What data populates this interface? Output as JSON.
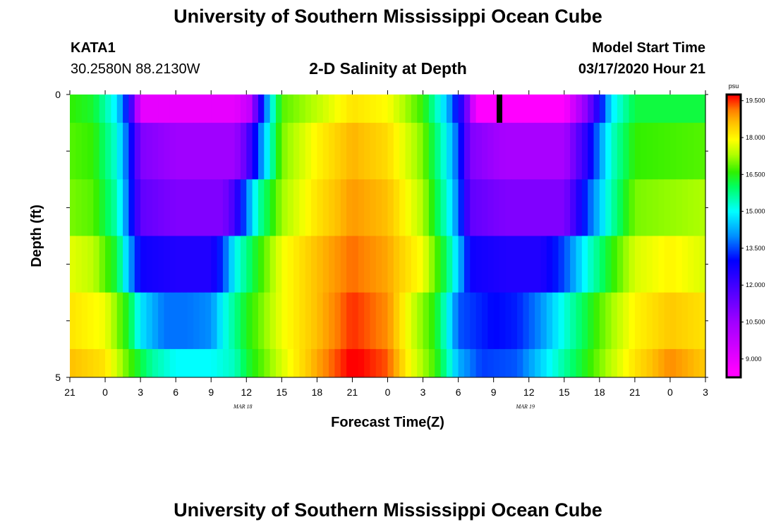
{
  "header": {
    "title": "University of Southern Mississippi Ocean Cube",
    "station": "KATA1",
    "coords": "30.2580N 88.2130W",
    "subtitle": "2-D Salinity at Depth",
    "model_start_label": "Model Start Time",
    "model_start_value": "03/17/2020 Hour 21"
  },
  "footer": {
    "title": "University of Southern Mississippi Ocean Cube"
  },
  "chart_data": {
    "type": "heatmap",
    "title": "2-D Salinity at Depth",
    "xlabel": "Forecast Time(Z)",
    "ylabel": "Depth (ft)",
    "x_ticks": [
      "21",
      "0",
      "3",
      "6",
      "9",
      "12",
      "15",
      "18",
      "21",
      "0",
      "3",
      "6",
      "9",
      "12",
      "15",
      "18",
      "21",
      "0",
      "3"
    ],
    "x_range_hours": [
      0,
      54
    ],
    "date_labels": [
      {
        "text": "MAR 18",
        "hour": 15
      },
      {
        "text": "MAR 19",
        "hour": 39
      }
    ],
    "y_ticks": [
      "0",
      "5"
    ],
    "y_range": [
      0,
      5
    ],
    "depth_rows": [
      0,
      1,
      2,
      3,
      4,
      5
    ],
    "current_time_hour": 36.5,
    "colorbar": {
      "unit": "psu",
      "min": 8.25,
      "max": 19.75,
      "tick_labels": [
        "19.500",
        "18.000",
        "16.500",
        "15.000",
        "13.500",
        "12.000",
        "10.500",
        "9.000"
      ],
      "tick_values": [
        19.5,
        18.0,
        16.5,
        15.0,
        13.5,
        12.0,
        10.5,
        9.0
      ]
    },
    "colormap": [
      {
        "v": 8.5,
        "c": "#ff00ff"
      },
      {
        "v": 10.5,
        "c": "#a000ff"
      },
      {
        "v": 12.0,
        "c": "#4000ff"
      },
      {
        "v": 13.0,
        "c": "#0000ff"
      },
      {
        "v": 14.0,
        "c": "#0090ff"
      },
      {
        "v": 15.0,
        "c": "#00ffff"
      },
      {
        "v": 16.0,
        "c": "#00ff60"
      },
      {
        "v": 16.6,
        "c": "#30f000"
      },
      {
        "v": 17.3,
        "c": "#b0ff00"
      },
      {
        "v": 17.9,
        "c": "#ffff00"
      },
      {
        "v": 18.6,
        "c": "#ffc000"
      },
      {
        "v": 19.1,
        "c": "#ff8000"
      },
      {
        "v": 19.7,
        "c": "#ff0000"
      }
    ],
    "salinity_keyframes_by_row": [
      [
        [
          0,
          16.6
        ],
        [
          2,
          16.3
        ],
        [
          4,
          14.8
        ],
        [
          5,
          12.8
        ],
        [
          6,
          9.0
        ],
        [
          9,
          9.0
        ],
        [
          14,
          9.0
        ],
        [
          15.3,
          9.8
        ],
        [
          16,
          12.0
        ],
        [
          17,
          14.8
        ],
        [
          18,
          16.8
        ],
        [
          21,
          17.4
        ],
        [
          24,
          18.2
        ],
        [
          27,
          17.9
        ],
        [
          30,
          16.6
        ],
        [
          32,
          14.5
        ],
        [
          33,
          12.8
        ],
        [
          33.5,
          12.0
        ],
        [
          34.5,
          8.5
        ],
        [
          37,
          8.5
        ],
        [
          42,
          8.5
        ],
        [
          44,
          11.0
        ],
        [
          45,
          12.8
        ],
        [
          46,
          14.8
        ],
        [
          48,
          16.2
        ],
        [
          54,
          16.2
        ]
      ],
      [
        [
          0,
          16.8
        ],
        [
          2,
          16.6
        ],
        [
          4,
          15.2
        ],
        [
          5,
          13.4
        ],
        [
          6,
          11.0
        ],
        [
          9,
          10.5
        ],
        [
          14,
          10.5
        ],
        [
          15,
          11.5
        ],
        [
          16,
          13.5
        ],
        [
          17,
          15.3
        ],
        [
          18,
          17.0
        ],
        [
          21,
          18.0
        ],
        [
          24,
          18.7
        ],
        [
          27,
          18.3
        ],
        [
          30,
          17.0
        ],
        [
          32,
          15.0
        ],
        [
          33,
          13.5
        ],
        [
          34,
          11.0
        ],
        [
          37,
          10.3
        ],
        [
          42,
          10.3
        ],
        [
          44,
          12.5
        ],
        [
          45,
          14.0
        ],
        [
          46,
          15.3
        ],
        [
          48,
          16.6
        ],
        [
          54,
          16.8
        ]
      ],
      [
        [
          0,
          17.0
        ],
        [
          2,
          16.8
        ],
        [
          4,
          15.5
        ],
        [
          5,
          13.6
        ],
        [
          6,
          11.5
        ],
        [
          9,
          11.0
        ],
        [
          13,
          11.0
        ],
        [
          14,
          12.0
        ],
        [
          15,
          13.8
        ],
        [
          16,
          15.5
        ],
        [
          18,
          17.2
        ],
        [
          21,
          18.2
        ],
        [
          24,
          18.9
        ],
        [
          27,
          18.6
        ],
        [
          30,
          17.3
        ],
        [
          32,
          15.3
        ],
        [
          33,
          13.8
        ],
        [
          34,
          11.5
        ],
        [
          37,
          11.0
        ],
        [
          42,
          11.0
        ],
        [
          43,
          12.2
        ],
        [
          44,
          13.5
        ],
        [
          46,
          15.5
        ],
        [
          48,
          17.0
        ],
        [
          54,
          17.3
        ]
      ],
      [
        [
          0,
          17.7
        ],
        [
          2,
          17.4
        ],
        [
          4,
          16.2
        ],
        [
          5,
          14.3
        ],
        [
          6,
          12.8
        ],
        [
          9,
          12.5
        ],
        [
          12,
          12.5
        ],
        [
          13,
          13.4
        ],
        [
          14,
          15.0
        ],
        [
          16,
          16.5
        ],
        [
          18,
          17.8
        ],
        [
          21,
          18.6
        ],
        [
          24,
          19.2
        ],
        [
          27,
          18.8
        ],
        [
          30,
          17.8
        ],
        [
          32,
          16.0
        ],
        [
          33,
          14.5
        ],
        [
          34,
          12.8
        ],
        [
          37,
          12.5
        ],
        [
          40,
          12.5
        ],
        [
          42,
          13.5
        ],
        [
          44,
          15.2
        ],
        [
          46,
          16.5
        ],
        [
          48,
          17.6
        ],
        [
          51,
          18.0
        ],
        [
          54,
          17.6
        ]
      ],
      [
        [
          0,
          18.2
        ],
        [
          3,
          17.8
        ],
        [
          5,
          16.3
        ],
        [
          6,
          14.8
        ],
        [
          8,
          13.8
        ],
        [
          10,
          13.8
        ],
        [
          12,
          14.0
        ],
        [
          13,
          15.0
        ],
        [
          15,
          16.4
        ],
        [
          18,
          17.8
        ],
        [
          21,
          18.6
        ],
        [
          24,
          19.5
        ],
        [
          27,
          19.0
        ],
        [
          29,
          17.6
        ],
        [
          31,
          16.5
        ],
        [
          32,
          15.2
        ],
        [
          33,
          13.6
        ],
        [
          36,
          13.0
        ],
        [
          38,
          13.2
        ],
        [
          40,
          14.0
        ],
        [
          42,
          15.2
        ],
        [
          45,
          16.8
        ],
        [
          48,
          18.0
        ],
        [
          51,
          18.5
        ],
        [
          54,
          18.2
        ]
      ],
      [
        [
          0,
          18.6
        ],
        [
          3,
          18.2
        ],
        [
          5,
          16.8
        ],
        [
          7,
          15.6
        ],
        [
          9,
          15.0
        ],
        [
          12,
          15.0
        ],
        [
          14,
          15.4
        ],
        [
          15,
          16.2
        ],
        [
          18,
          17.6
        ],
        [
          21,
          18.8
        ],
        [
          24,
          19.8
        ],
        [
          27,
          19.3
        ],
        [
          29,
          17.8
        ],
        [
          31,
          16.7
        ],
        [
          32,
          15.6
        ],
        [
          33,
          14.3
        ],
        [
          35,
          13.4
        ],
        [
          38,
          13.6
        ],
        [
          40,
          14.6
        ],
        [
          42,
          15.6
        ],
        [
          45,
          17.0
        ],
        [
          48,
          18.2
        ],
        [
          51,
          19.0
        ],
        [
          54,
          18.5
        ]
      ]
    ]
  }
}
